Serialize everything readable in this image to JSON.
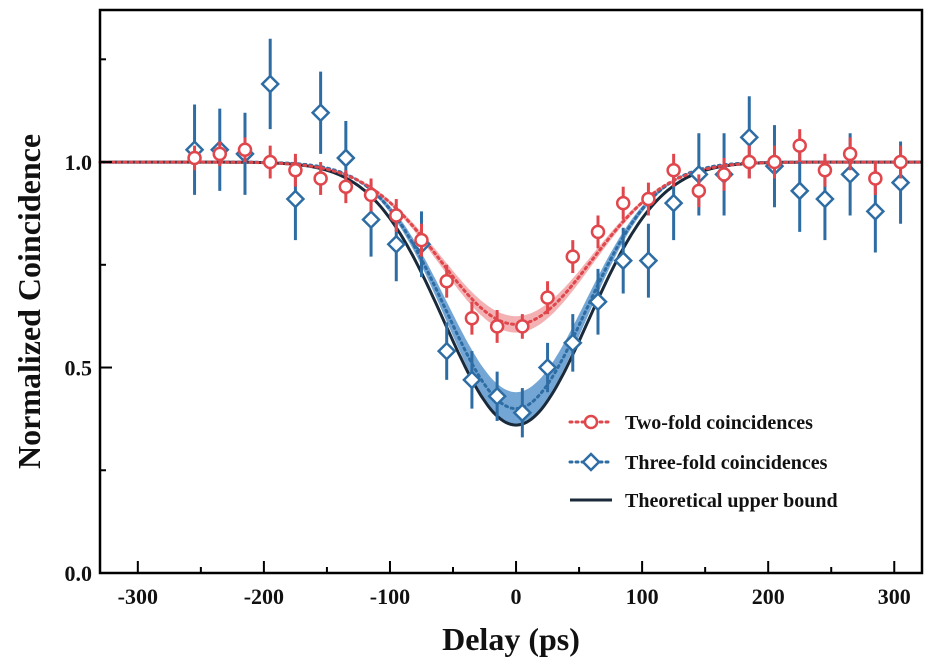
{
  "chart_data": {
    "type": "scatter",
    "title": "",
    "xlabel": "Delay (ps)",
    "ylabel": "Normalized Coincidence",
    "xlim": [
      -330,
      322
    ],
    "ylim": [
      0.0,
      1.37
    ],
    "xticks": [
      -300,
      -200,
      -100,
      0,
      100,
      200,
      300
    ],
    "xtick_labels": [
      "-300",
      "-200",
      "-100",
      "0",
      "100",
      "200",
      "300"
    ],
    "yticks": [
      0.0,
      0.5,
      1.0
    ],
    "ytick_labels": [
      "0.0",
      "0.5",
      "1.0"
    ],
    "legend_position": "lower-right",
    "series": [
      {
        "name": "Two-fold coincidences",
        "marker": "circle",
        "color": "#e0474c",
        "points": [
          {
            "x": -255,
            "y": 1.01,
            "err": 0.03
          },
          {
            "x": -235,
            "y": 1.02,
            "err": 0.03
          },
          {
            "x": -215,
            "y": 1.03,
            "err": 0.03
          },
          {
            "x": -195,
            "y": 1.0,
            "err": 0.04
          },
          {
            "x": -175,
            "y": 0.98,
            "err": 0.04
          },
          {
            "x": -155,
            "y": 0.96,
            "err": 0.04
          },
          {
            "x": -135,
            "y": 0.94,
            "err": 0.04
          },
          {
            "x": -115,
            "y": 0.92,
            "err": 0.04
          },
          {
            "x": -95,
            "y": 0.87,
            "err": 0.04
          },
          {
            "x": -75,
            "y": 0.81,
            "err": 0.04
          },
          {
            "x": -55,
            "y": 0.71,
            "err": 0.04
          },
          {
            "x": -35,
            "y": 0.62,
            "err": 0.04
          },
          {
            "x": -15,
            "y": 0.6,
            "err": 0.04
          },
          {
            "x": 5,
            "y": 0.6,
            "err": 0.03
          },
          {
            "x": 25,
            "y": 0.67,
            "err": 0.04
          },
          {
            "x": 45,
            "y": 0.77,
            "err": 0.04
          },
          {
            "x": 65,
            "y": 0.83,
            "err": 0.04
          },
          {
            "x": 85,
            "y": 0.9,
            "err": 0.04
          },
          {
            "x": 105,
            "y": 0.91,
            "err": 0.04
          },
          {
            "x": 125,
            "y": 0.98,
            "err": 0.04
          },
          {
            "x": 145,
            "y": 0.93,
            "err": 0.04
          },
          {
            "x": 165,
            "y": 0.97,
            "err": 0.04
          },
          {
            "x": 185,
            "y": 1.0,
            "err": 0.04
          },
          {
            "x": 205,
            "y": 1.0,
            "err": 0.04
          },
          {
            "x": 225,
            "y": 1.04,
            "err": 0.04
          },
          {
            "x": 245,
            "y": 0.98,
            "err": 0.04
          },
          {
            "x": 265,
            "y": 1.02,
            "err": 0.04
          },
          {
            "x": 285,
            "y": 0.96,
            "err": 0.04
          },
          {
            "x": 305,
            "y": 1.0,
            "err": 0.04
          }
        ],
        "fit": {
          "style": "dotted",
          "baseline": 1.0,
          "dip_depth": 0.395,
          "sigma": 60,
          "band": 0.02
        }
      },
      {
        "name": "Three-fold coincidences",
        "marker": "diamond",
        "color": "#2e6da4",
        "points": [
          {
            "x": -255,
            "y": 1.03,
            "err": 0.11
          },
          {
            "x": -235,
            "y": 1.03,
            "err": 0.1
          },
          {
            "x": -215,
            "y": 1.02,
            "err": 0.1
          },
          {
            "x": -195,
            "y": 1.19,
            "err": 0.11
          },
          {
            "x": -175,
            "y": 0.91,
            "err": 0.1
          },
          {
            "x": -155,
            "y": 1.12,
            "err": 0.1
          },
          {
            "x": -135,
            "y": 1.01,
            "err": 0.09
          },
          {
            "x": -115,
            "y": 0.86,
            "err": 0.09
          },
          {
            "x": -95,
            "y": 0.8,
            "err": 0.09
          },
          {
            "x": -75,
            "y": 0.8,
            "err": 0.08
          },
          {
            "x": -55,
            "y": 0.54,
            "err": 0.07
          },
          {
            "x": -35,
            "y": 0.47,
            "err": 0.07
          },
          {
            "x": -15,
            "y": 0.43,
            "err": 0.06
          },
          {
            "x": 5,
            "y": 0.39,
            "err": 0.06
          },
          {
            "x": 25,
            "y": 0.5,
            "err": 0.06
          },
          {
            "x": 45,
            "y": 0.56,
            "err": 0.07
          },
          {
            "x": 65,
            "y": 0.66,
            "err": 0.08
          },
          {
            "x": 85,
            "y": 0.76,
            "err": 0.08
          },
          {
            "x": 105,
            "y": 0.76,
            "err": 0.09
          },
          {
            "x": 125,
            "y": 0.9,
            "err": 0.09
          },
          {
            "x": 145,
            "y": 0.97,
            "err": 0.1
          },
          {
            "x": 165,
            "y": 0.97,
            "err": 0.1
          },
          {
            "x": 185,
            "y": 1.06,
            "err": 0.1
          },
          {
            "x": 205,
            "y": 0.99,
            "err": 0.1
          },
          {
            "x": 225,
            "y": 0.93,
            "err": 0.1
          },
          {
            "x": 245,
            "y": 0.91,
            "err": 0.1
          },
          {
            "x": 265,
            "y": 0.97,
            "err": 0.1
          },
          {
            "x": 285,
            "y": 0.88,
            "err": 0.1
          },
          {
            "x": 305,
            "y": 0.95,
            "err": 0.1
          }
        ],
        "fit": {
          "style": "dotted",
          "baseline": 1.0,
          "dip_depth": 0.6,
          "sigma": 55,
          "band": 0.04
        }
      },
      {
        "name": "Theoretical upper bound",
        "marker": "none",
        "color": "#1a2a3a",
        "fit": {
          "style": "solid",
          "baseline": 1.0,
          "dip_depth": 0.64,
          "sigma": 57,
          "band": 0
        }
      }
    ]
  },
  "colors": {
    "two_fold": "#e0474c",
    "two_fold_band": "#f1a3a6",
    "three_fold": "#2e6da4",
    "three_fold_band": "#5b97cc",
    "theory": "#1a2a3a",
    "axis": "#000000"
  }
}
